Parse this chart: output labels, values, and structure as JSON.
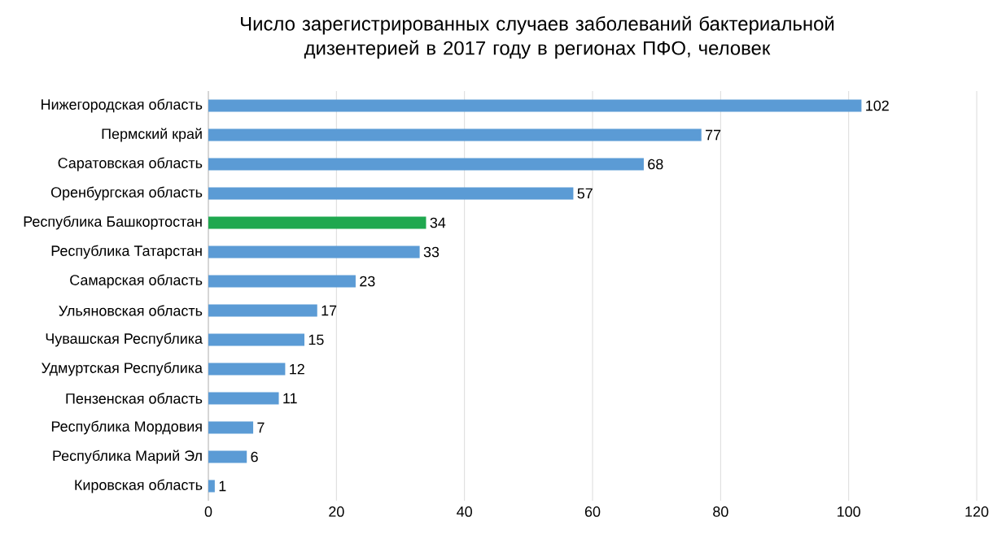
{
  "chart_data": {
    "type": "bar",
    "orientation": "horizontal",
    "title": "Число зарегистрированных случаев заболеваний бактериальной дизентерией в 2017 году в регионах ПФО, человек",
    "categories": [
      "Нижегородская область",
      "Пермский край",
      "Саратовская область",
      "Оренбургская область",
      "Республика Башкортостан",
      "Республика Татарстан",
      "Самарская область",
      "Ульяновская область",
      "Чувашская Республика",
      "Удмуртская Республика",
      "Пензенская область",
      "Республика Мордовия",
      "Республика Марий Эл",
      "Кировская область"
    ],
    "values": [
      102,
      77,
      68,
      57,
      34,
      33,
      23,
      17,
      15,
      12,
      11,
      7,
      6,
      1
    ],
    "colors": [
      "#5b9bd5",
      "#5b9bd5",
      "#5b9bd5",
      "#5b9bd5",
      "#1fa84f",
      "#5b9bd5",
      "#5b9bd5",
      "#5b9bd5",
      "#5b9bd5",
      "#5b9bd5",
      "#5b9bd5",
      "#5b9bd5",
      "#5b9bd5",
      "#5b9bd5"
    ],
    "xlim": [
      0,
      120
    ],
    "xticks": [
      0,
      20,
      40,
      60,
      80,
      100,
      120
    ],
    "grid": "x",
    "data_labels": true
  }
}
